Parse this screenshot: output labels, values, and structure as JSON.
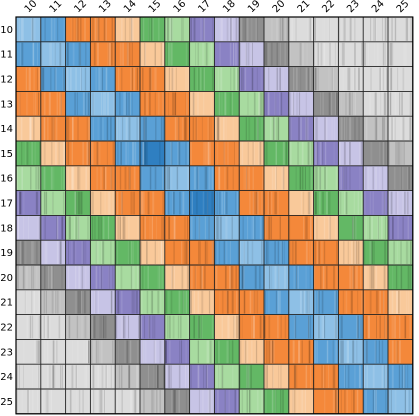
{
  "chart_data": {
    "type": "heatmap",
    "title": "",
    "xlabel": "",
    "ylabel": "",
    "x_categories": [
      "10",
      "11",
      "12",
      "13",
      "14",
      "15",
      "16",
      "17",
      "18",
      "19",
      "20",
      "21",
      "22",
      "23",
      "24",
      "25"
    ],
    "y_categories": [
      "10",
      "11",
      "12",
      "13",
      "14",
      "15",
      "16",
      "17",
      "18",
      "19",
      "20",
      "21",
      "22",
      "23",
      "24",
      "25"
    ],
    "x_tick_position": "top",
    "x_tick_rotation_deg": -45,
    "cell_color_grid": [
      [
        "lightblue",
        "blue",
        "orange",
        "orange",
        "peach",
        "green",
        "lightgreen",
        "purple",
        "lightpurple",
        "gray",
        "lightgray",
        "palegray",
        "palegray",
        "palegray",
        "palegray",
        "palegray"
      ],
      [
        "blue",
        "lightblue",
        "blue",
        "orange",
        "orange",
        "peach",
        "green",
        "lightgreen",
        "purple",
        "lightpurple",
        "gray",
        "lightgray",
        "palegray",
        "palegray",
        "palegray",
        "palegray"
      ],
      [
        "orange",
        "blue",
        "lightblue",
        "blue",
        "orange",
        "orange",
        "peach",
        "green",
        "lightgreen",
        "purple",
        "lightpurple",
        "gray",
        "lightgray",
        "palegray",
        "palegray",
        "palegray"
      ],
      [
        "orange",
        "orange",
        "blue",
        "lightblue",
        "blue",
        "orange",
        "orange",
        "peach",
        "green",
        "lightgreen",
        "purple",
        "lightpurple",
        "gray",
        "lightgray",
        "palegray",
        "palegray"
      ],
      [
        "peach",
        "orange",
        "orange",
        "blue",
        "lightblue",
        "blue",
        "orange",
        "orange",
        "peach",
        "green",
        "lightgreen",
        "purple",
        "lightpurple",
        "gray",
        "lightgray",
        "palegray"
      ],
      [
        "green",
        "peach",
        "orange",
        "orange",
        "blue",
        "darkblue",
        "blue",
        "orange",
        "orange",
        "peach",
        "green",
        "lightgreen",
        "purple",
        "lightpurple",
        "gray",
        "lightgray"
      ],
      [
        "lightgreen",
        "green",
        "peach",
        "orange",
        "orange",
        "blue",
        "lightblue",
        "blue",
        "orange",
        "orange",
        "peach",
        "green",
        "lightgreen",
        "purple",
        "lightpurple",
        "gray"
      ],
      [
        "purple",
        "lightgreen",
        "green",
        "peach",
        "orange",
        "orange",
        "blue",
        "darkblue",
        "blue",
        "orange",
        "orange",
        "peach",
        "green",
        "lightgreen",
        "purple",
        "lightpurple"
      ],
      [
        "lightpurple",
        "purple",
        "lightgreen",
        "green",
        "peach",
        "orange",
        "orange",
        "blue",
        "lightblue",
        "blue",
        "orange",
        "orange",
        "peach",
        "green",
        "lightgreen",
        "purple"
      ],
      [
        "gray",
        "lightpurple",
        "purple",
        "lightgreen",
        "green",
        "peach",
        "orange",
        "orange",
        "blue",
        "lightblue",
        "blue",
        "orange",
        "orange",
        "peach",
        "green",
        "lightgreen"
      ],
      [
        "lightgray",
        "gray",
        "lightpurple",
        "purple",
        "lightgreen",
        "green",
        "peach",
        "orange",
        "orange",
        "blue",
        "lightblue",
        "blue",
        "orange",
        "orange",
        "peach",
        "green"
      ],
      [
        "palegray",
        "lightgray",
        "gray",
        "lightpurple",
        "purple",
        "lightgreen",
        "green",
        "peach",
        "orange",
        "orange",
        "blue",
        "lightblue",
        "blue",
        "orange",
        "orange",
        "peach"
      ],
      [
        "palegray",
        "palegray",
        "lightgray",
        "gray",
        "lightpurple",
        "purple",
        "lightgreen",
        "green",
        "peach",
        "orange",
        "orange",
        "blue",
        "lightblue",
        "blue",
        "orange",
        "orange"
      ],
      [
        "palegray",
        "palegray",
        "palegray",
        "lightgray",
        "gray",
        "lightpurple",
        "purple",
        "lightgreen",
        "green",
        "peach",
        "orange",
        "orange",
        "blue",
        "lightblue",
        "blue",
        "orange"
      ],
      [
        "palegray",
        "palegray",
        "palegray",
        "palegray",
        "lightgray",
        "gray",
        "lightpurple",
        "purple",
        "lightgreen",
        "green",
        "peach",
        "orange",
        "orange",
        "blue",
        "lightblue",
        "blue"
      ],
      [
        "palegray",
        "palegray",
        "palegray",
        "palegray",
        "palegray",
        "lightgray",
        "gray",
        "lightpurple",
        "purple",
        "lightgreen",
        "green",
        "peach",
        "orange",
        "orange",
        "blue",
        "lightblue"
      ]
    ],
    "colors": {
      "darkblue": "#2f7fc1",
      "blue": "#5aa0d6",
      "lightblue": "#8ec0e6",
      "orange": "#f4883a",
      "peach": "#f9c99a",
      "green": "#63b865",
      "lightgreen": "#a8dba0",
      "purple": "#8a82c4",
      "lightpurple": "#c7c4e6",
      "gray": "#8f8f8f",
      "lightgray": "#c2c2c2",
      "palegray": "#dcdcdc"
    },
    "grid": true,
    "legend": "none"
  }
}
